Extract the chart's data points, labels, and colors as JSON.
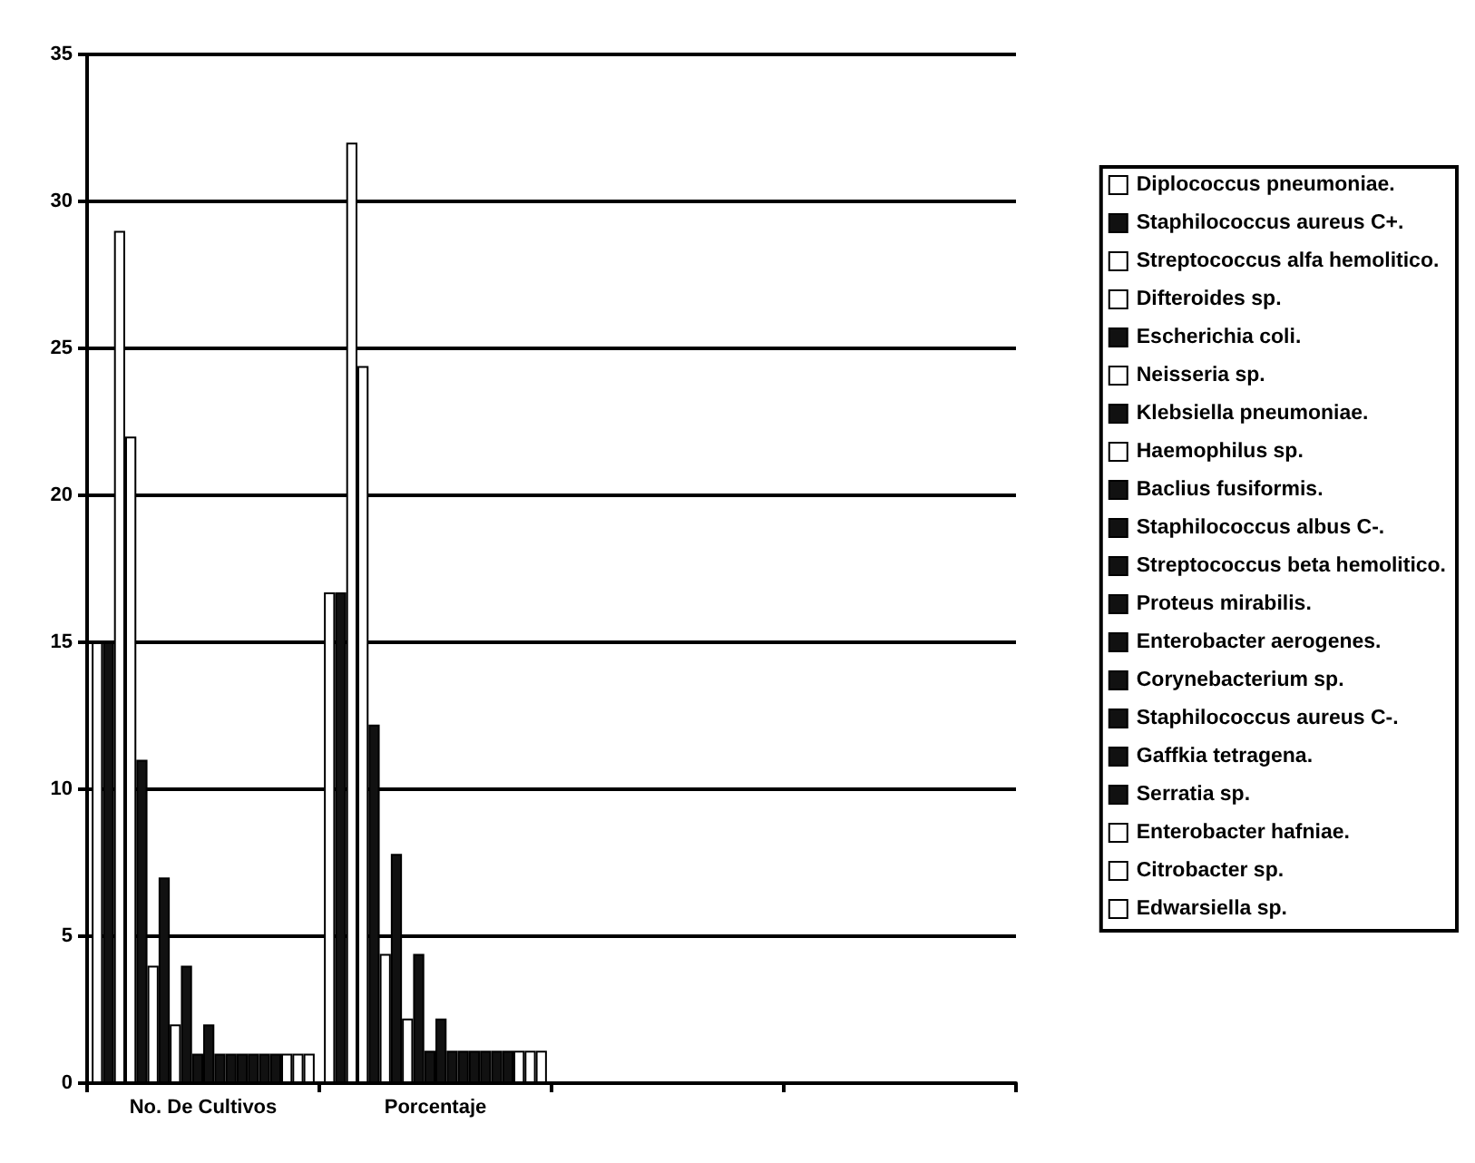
{
  "chart_data": {
    "type": "bar",
    "categories": [
      "No. De Cultivos",
      "Porcentaje",
      null,
      null
    ],
    "ylim": [
      0,
      35
    ],
    "yticks": [
      0,
      5,
      10,
      15,
      20,
      25,
      30,
      35
    ],
    "grid": "y",
    "legend": "right",
    "series": [
      {
        "name": "Diplococcus pneumoniae.",
        "color": "#ffffff",
        "values": [
          15,
          16.7,
          null,
          null
        ]
      },
      {
        "name": "Staphilococcus aureus C+.",
        "color": "#111111",
        "values": [
          15,
          16.7,
          null,
          null
        ]
      },
      {
        "name": "Streptococcus alfa hemolitico.",
        "color": "#ffffff",
        "values": [
          29,
          32,
          null,
          null
        ]
      },
      {
        "name": "Difteroides sp.",
        "color": "#ffffff",
        "values": [
          22,
          24.4,
          null,
          null
        ]
      },
      {
        "name": "Escherichia coli.",
        "color": "#111111",
        "values": [
          11,
          12.2,
          null,
          null
        ]
      },
      {
        "name": "Neisseria sp.",
        "color": "#ffffff",
        "values": [
          4,
          4.4,
          null,
          null
        ]
      },
      {
        "name": "Klebsiella pneumoniae.",
        "color": "#111111",
        "values": [
          7,
          7.8,
          null,
          null
        ]
      },
      {
        "name": "Haemophilus sp.",
        "color": "#ffffff",
        "values": [
          2,
          2.2,
          null,
          null
        ]
      },
      {
        "name": "Baclius fusiformis.",
        "color": "#111111",
        "values": [
          4,
          4.4,
          null,
          null
        ]
      },
      {
        "name": "Staphilococcus albus C-.",
        "color": "#111111",
        "values": [
          1,
          1.1,
          null,
          null
        ]
      },
      {
        "name": "Streptococcus beta hemolitico.",
        "color": "#111111",
        "values": [
          2,
          2.2,
          null,
          null
        ]
      },
      {
        "name": "Proteus mirabilis.",
        "color": "#111111",
        "values": [
          1,
          1.1,
          null,
          null
        ]
      },
      {
        "name": "Enterobacter aerogenes.",
        "color": "#111111",
        "values": [
          1,
          1.1,
          null,
          null
        ]
      },
      {
        "name": "Corynebacterium sp.",
        "color": "#111111",
        "values": [
          1,
          1.1,
          null,
          null
        ]
      },
      {
        "name": "Staphilococcus aureus C-.",
        "color": "#111111",
        "values": [
          1,
          1.1,
          null,
          null
        ]
      },
      {
        "name": "Gaffkia tetragena.",
        "color": "#111111",
        "values": [
          1,
          1.1,
          null,
          null
        ]
      },
      {
        "name": "Serratia sp.",
        "color": "#111111",
        "values": [
          1,
          1.1,
          null,
          null
        ]
      },
      {
        "name": "Enterobacter hafniae.",
        "color": "#ffffff",
        "values": [
          1,
          1.1,
          null,
          null
        ]
      },
      {
        "name": "Citrobacter sp.",
        "color": "#ffffff",
        "values": [
          1,
          1.1,
          null,
          null
        ]
      },
      {
        "name": "Edwarsiella sp.",
        "color": "#ffffff",
        "values": [
          1,
          1.1,
          null,
          null
        ]
      }
    ]
  }
}
